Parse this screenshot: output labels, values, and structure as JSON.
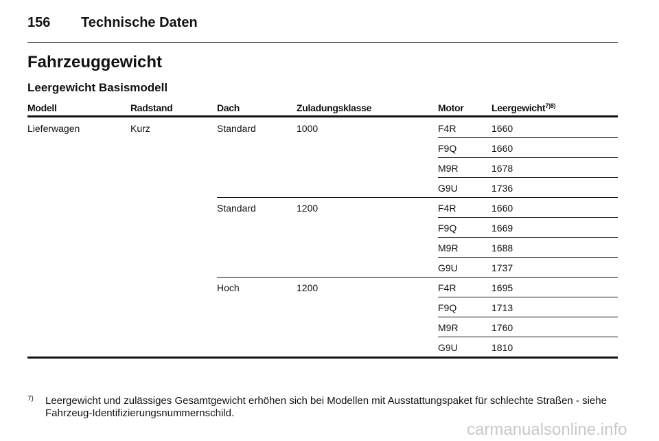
{
  "header": {
    "page_number": "156",
    "section": "Technische Daten"
  },
  "title": "Fahrzeuggewicht",
  "subtitle": "Leergewicht Basismodell",
  "table": {
    "columns": [
      "Modell",
      "Radstand",
      "Dach",
      "Zuladungsklasse",
      "Motor",
      "Leergewicht"
    ],
    "column_note": "7)8)",
    "model": "Lieferwagen",
    "wheelbase": "Kurz",
    "groups": [
      {
        "roof": "Standard",
        "payload": "1000",
        "rows": [
          {
            "engine": "F4R",
            "weight": "1660"
          },
          {
            "engine": "F9Q",
            "weight": "1660"
          },
          {
            "engine": "M9R",
            "weight": "1678"
          },
          {
            "engine": "G9U",
            "weight": "1736"
          }
        ]
      },
      {
        "roof": "Standard",
        "payload": "1200",
        "rows": [
          {
            "engine": "F4R",
            "weight": "1660"
          },
          {
            "engine": "F9Q",
            "weight": "1669"
          },
          {
            "engine": "M9R",
            "weight": "1688"
          },
          {
            "engine": "G9U",
            "weight": "1737"
          }
        ]
      },
      {
        "roof": "Hoch",
        "payload": "1200",
        "rows": [
          {
            "engine": "F4R",
            "weight": "1695"
          },
          {
            "engine": "F9Q",
            "weight": "1713"
          },
          {
            "engine": "M9R",
            "weight": "1760"
          },
          {
            "engine": "G9U",
            "weight": "1810"
          }
        ]
      }
    ]
  },
  "footnote": {
    "marker": "7)",
    "text": "Leergewicht und zulässiges Gesamtgewicht erhöhen sich bei Modellen mit Ausstattungspaket für schlechte Straßen - siehe Fahrzeug-Identifizierungsnummernschild."
  },
  "watermark": "carmanualsonline.info"
}
